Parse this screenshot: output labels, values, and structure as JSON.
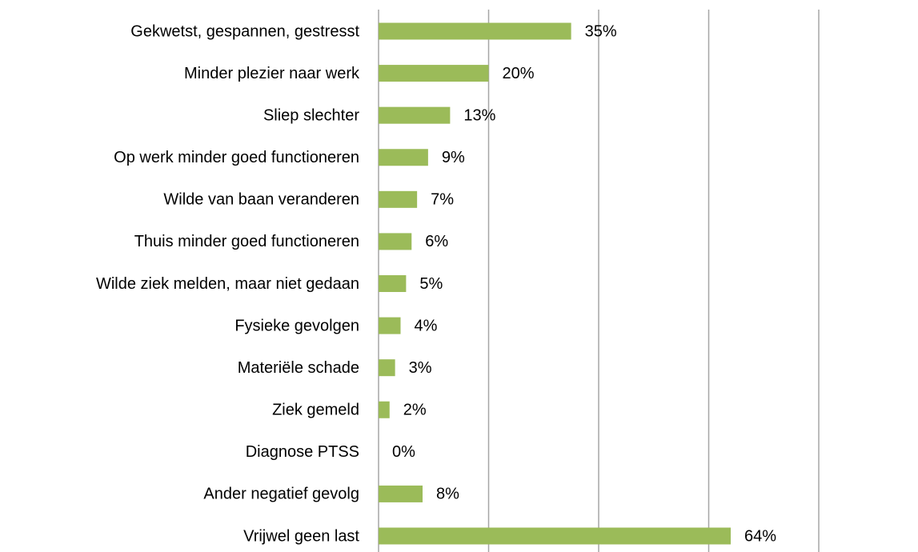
{
  "chart_data": {
    "type": "barh",
    "categories": [
      "Gekwetst, gespannen, gestresst",
      "Minder plezier naar werk",
      "Sliep slechter",
      "Op werk minder goed functioneren",
      "Wilde van baan veranderen",
      "Thuis minder goed functioneren",
      "Wilde ziek melden, maar niet gedaan",
      "Fysieke gevolgen",
      "Materiële schade",
      "Ziek gemeld",
      "Diagnose PTSS",
      "Ander negatief gevolg",
      "Vrijwel geen last"
    ],
    "values": [
      35,
      20,
      13,
      9,
      7,
      6,
      5,
      4,
      3,
      2,
      0,
      8,
      64
    ],
    "value_labels": [
      "35%",
      "20%",
      "13%",
      "9%",
      "7%",
      "6%",
      "5%",
      "4%",
      "3%",
      "2%",
      "0%",
      "8%",
      "64%"
    ],
    "color": "#9bbb59",
    "xlim": [
      0,
      80
    ],
    "xticks": [
      0,
      20,
      40,
      60,
      80
    ],
    "grid": true
  }
}
